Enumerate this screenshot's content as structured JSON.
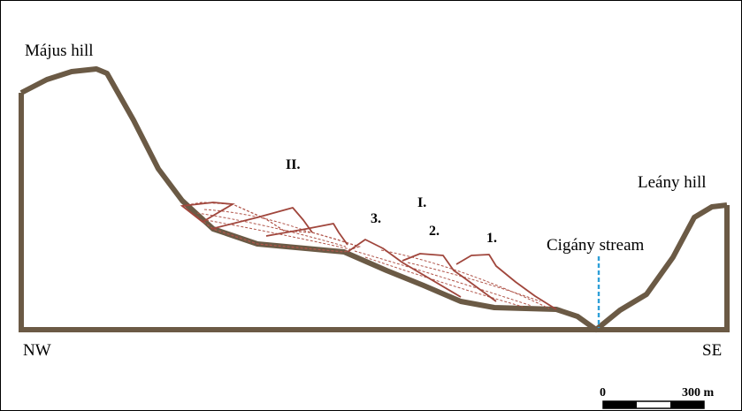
{
  "labels": {
    "majus_hill": "Május hill",
    "leany_hill": "Leány hill",
    "cigany_stream": "Cigány stream",
    "nw": "NW",
    "se": "SE",
    "group_two": "II.",
    "group_one": "I.",
    "slide_three": "3.",
    "slide_two": "2.",
    "slide_one": "1."
  },
  "scale_bar": {
    "start_label": "0",
    "end_label": "300 m"
  },
  "colors": {
    "terrain": "#6b5a45",
    "landslide": "#a0463c",
    "landslide_hatch": "#b0554a",
    "stream": "#2e9fd8",
    "text": "#000000"
  }
}
